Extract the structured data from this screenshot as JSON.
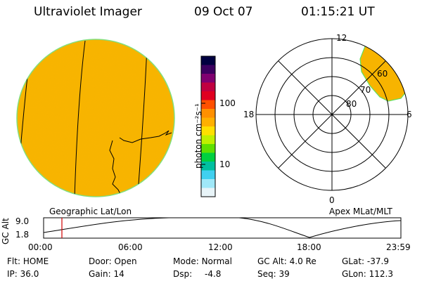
{
  "header": {
    "instrument": "Ultraviolet Imager",
    "date": "09 Oct 07",
    "time": "01:15:21 UT"
  },
  "colorbar": {
    "unit_label": "photon cm⁻²s⁻¹",
    "ticks": [
      "100",
      "10"
    ],
    "colors": [
      "#000040",
      "#3c0060",
      "#800070",
      "#c00040",
      "#e00020",
      "#ff5000",
      "#ff9000",
      "#ffb000",
      "#ffe000",
      "#c0f000",
      "#60e000",
      "#00d040",
      "#00c0a0",
      "#40d0f0",
      "#a0e8f8",
      "#e8f4f8"
    ]
  },
  "globe_panel": {
    "label": "Geographic Lat/Lon",
    "fill_color": "#f7b400",
    "rim_color": "#80e080"
  },
  "polar_panel": {
    "label": "Apex MLat/MLT",
    "mlt_labels": {
      "top": "12",
      "right": "6",
      "bottom": "0",
      "left": "18"
    },
    "lat_labels": [
      "60",
      "70",
      "80"
    ],
    "aurora_color": "#f7b400"
  },
  "altitude_plot": {
    "ylabel": "GC Alt",
    "y_ticks": [
      "9.0",
      "1.8"
    ],
    "x_ticks": [
      "00:00",
      "06:00",
      "12:00",
      "18:00",
      "23:59"
    ],
    "marker_color": "#d00000"
  },
  "status": {
    "flt_label": "Flt:",
    "flt_value": "HOME",
    "ip_label": "IP:",
    "ip_value": "36.0",
    "door_label": "Door:",
    "door_value": "Open",
    "gain_label": "Gain:",
    "gain_value": "14",
    "mode_label": "Mode:",
    "mode_value": "Normal",
    "dsp_label": "Dsp:",
    "dsp_value": "-4.8",
    "gcalt_label": "GC Alt:",
    "gcalt_value": "4.0 Re",
    "seq_label": "Seq:",
    "seq_value": "39",
    "glat_label": "GLat:",
    "glat_value": "-37.9",
    "glon_label": "GLon:",
    "glon_value": "112.3"
  }
}
